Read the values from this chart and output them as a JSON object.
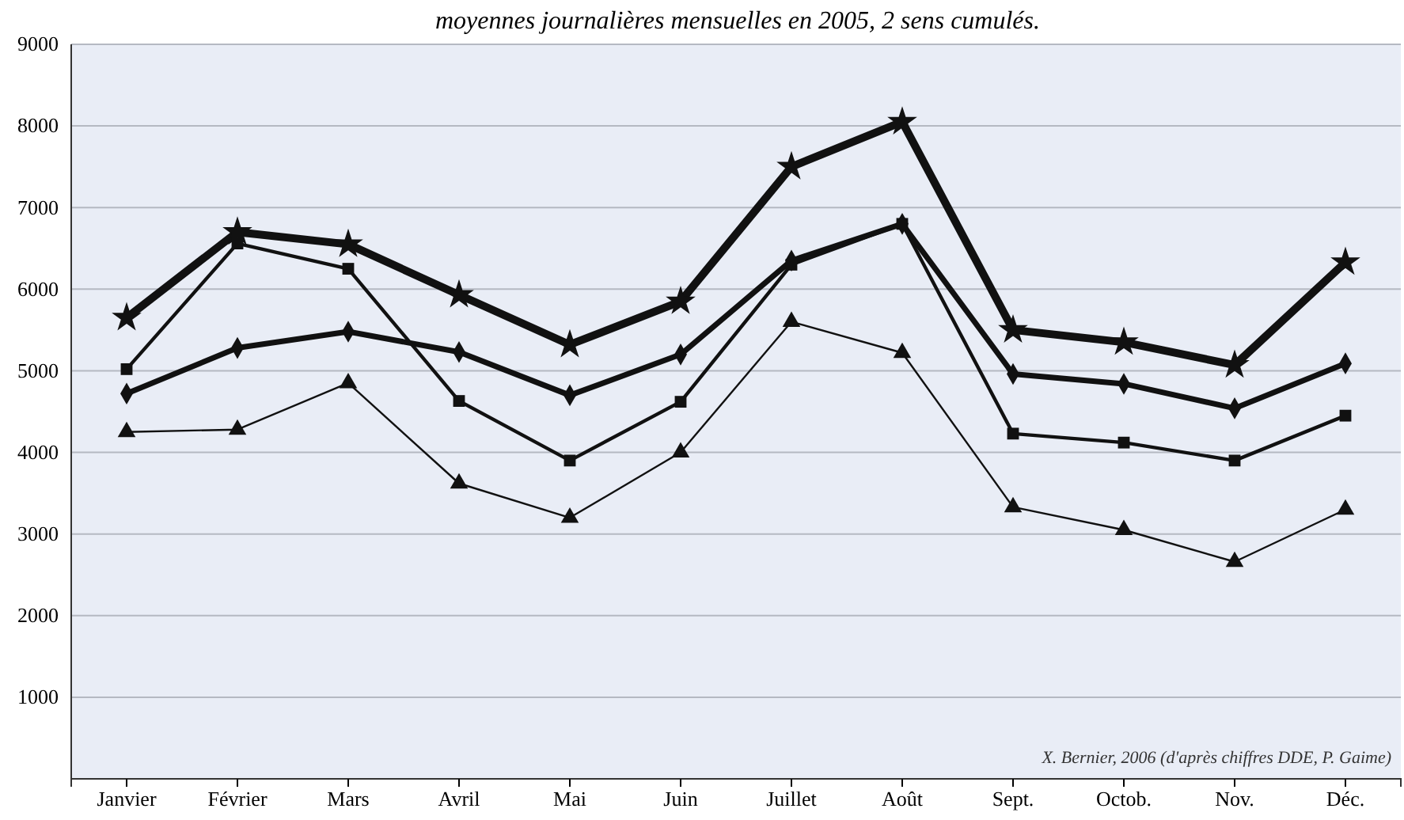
{
  "chart_data": {
    "type": "line",
    "title": "moyennes journalières mensuelles en 2005, 2 sens cumulés.",
    "categories": [
      "Janvier",
      "Février",
      "Mars",
      "Avril",
      "Mai",
      "Juin",
      "Juillet",
      "Août",
      "Sept.",
      "Octob.",
      "Nov.",
      "Déc."
    ],
    "series": [
      {
        "color": "#111111",
        "marker": "star",
        "values": [
          5650,
          6700,
          6550,
          5930,
          5320,
          5850,
          7500,
          8050,
          5500,
          5350,
          5070,
          6330
        ]
      },
      {
        "color": "#111111",
        "marker": "diamond",
        "values": [
          4720,
          5280,
          5480,
          5230,
          4700,
          5200,
          6350,
          6800,
          4960,
          4840,
          4540,
          5090
        ]
      },
      {
        "color": "#111111",
        "marker": "square",
        "values": [
          5020,
          6560,
          6250,
          4630,
          3900,
          4620,
          6300,
          6800,
          4230,
          4120,
          3900,
          4450
        ]
      },
      {
        "color": "#111111",
        "marker": "triangle",
        "values": [
          4250,
          4280,
          4850,
          3620,
          3200,
          4000,
          5600,
          5220,
          3330,
          3050,
          2660,
          3300
        ]
      }
    ],
    "ylim": [
      0,
      9000
    ],
    "yticks": [
      {
        "value": 0,
        "label": null
      },
      1000,
      2000,
      3000,
      4000,
      5000,
      6000,
      7000,
      8000,
      9000
    ],
    "grid": "y",
    "annotations": [
      "X. Bernier, 2006 (d'après chiffres DDE, P. Gaime)"
    ]
  }
}
